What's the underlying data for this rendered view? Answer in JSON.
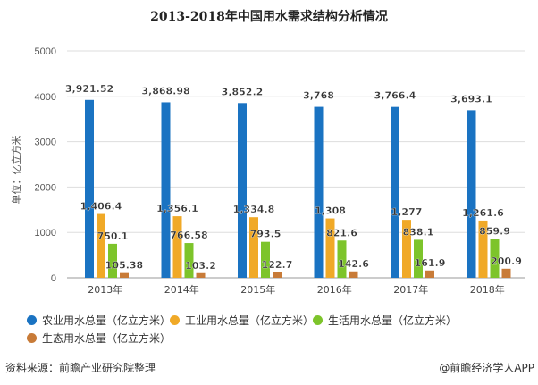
{
  "chart_data": {
    "type": "bar",
    "title": "2013-2018年中国用水需求结构分析情况",
    "ylabel": "单位：亿立方米",
    "xlabel": "",
    "ylim": [
      0,
      5000
    ],
    "yticks": [
      0,
      1000,
      2000,
      3000,
      4000,
      5000
    ],
    "grid": true,
    "legend_position": "bottom",
    "categories": [
      "2013年",
      "2014年",
      "2015年",
      "2016年",
      "2017年",
      "2018年"
    ],
    "series": [
      {
        "name": "农业用水总量（亿立方米）",
        "color": "#1a73c2",
        "values": [
          3921.52,
          3868.98,
          3852.2,
          3768,
          3766.4,
          3693.1
        ],
        "labels": [
          "3,921.52",
          "3,868.98",
          "3,852.2",
          "3,768",
          "3,766.4",
          "3,693.1"
        ]
      },
      {
        "name": "工业用水总量（亿立方米）",
        "color": "#f0a927",
        "values": [
          1406.4,
          1356.1,
          1334.8,
          1308,
          1277,
          1261.6
        ],
        "labels": [
          "1,406.4",
          "1,356.1",
          "1,334.8",
          "1,308",
          "1,277",
          "1,261.6"
        ]
      },
      {
        "name": "生活用水总量（亿立方米）",
        "color": "#7dc42b",
        "values": [
          750.1,
          766.58,
          793.5,
          821.6,
          838.1,
          859.9
        ],
        "labels": [
          "750.1",
          "766.58",
          "793.5",
          "821.6",
          "838.1",
          "859.9"
        ]
      },
      {
        "name": "生态用水总量（亿立方米）",
        "color": "#c87b38",
        "values": [
          105.38,
          103.2,
          122.7,
          142.6,
          161.9,
          200.9
        ],
        "labels": [
          "105.38",
          "103.2",
          "122.7",
          "142.6",
          "161.9",
          "200.9"
        ]
      }
    ]
  },
  "footer": {
    "source": "资料来源：前瞻产业研究院整理",
    "credit": "@前瞻经济学人APP"
  }
}
